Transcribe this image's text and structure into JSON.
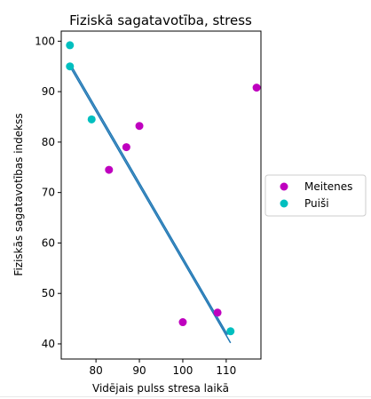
{
  "chart_data": {
    "type": "scatter",
    "title": "Fiziskā sagatavotība, stress",
    "xlabel": "Vidējais pulss stresa laikā",
    "ylabel": "Fiziskās sagatavotības indekss",
    "xlim": [
      72,
      118
    ],
    "ylim": [
      37,
      102
    ],
    "xticks": [
      80,
      90,
      100,
      110
    ],
    "yticks": [
      40,
      50,
      60,
      70,
      80,
      90,
      100
    ],
    "grid": false,
    "legend_position": "right",
    "series": [
      {
        "name": "Meitenes",
        "color": "#bf00bf",
        "points": [
          {
            "x": 83,
            "y": 74.5
          },
          {
            "x": 87,
            "y": 79
          },
          {
            "x": 90,
            "y": 83.2
          },
          {
            "x": 100,
            "y": 44.3
          },
          {
            "x": 108,
            "y": 46.2
          },
          {
            "x": 117,
            "y": 90.8
          }
        ]
      },
      {
        "name": "Puiši",
        "color": "#00bfbf",
        "points": [
          {
            "x": 74,
            "y": 99.2
          },
          {
            "x": 74,
            "y": 95
          },
          {
            "x": 79,
            "y": 84.5
          },
          {
            "x": 111,
            "y": 42.5
          }
        ]
      }
    ],
    "trend_line": {
      "color": "#1f77b4",
      "segments": [
        {
          "from": [
            74,
            95
          ],
          "to": [
            111,
            40.2
          ]
        },
        {
          "from": [
            74.4,
            95
          ],
          "to": [
            110.3,
            41.8
          ]
        }
      ]
    }
  }
}
